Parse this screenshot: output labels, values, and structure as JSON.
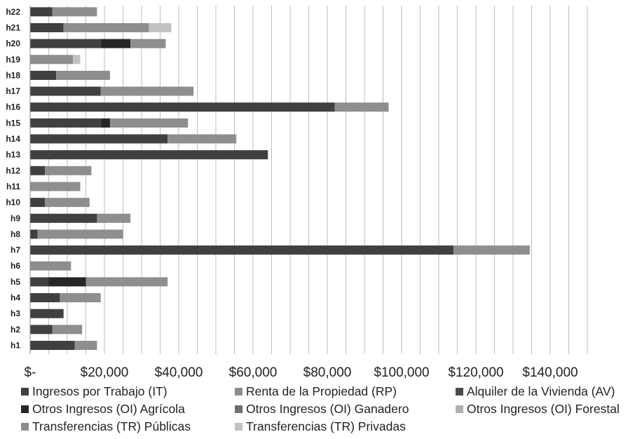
{
  "chart_data": {
    "type": "bar",
    "orientation": "horizontal",
    "stacked": true,
    "categories": [
      "h22",
      "h21",
      "h20",
      "h19",
      "h18",
      "h17",
      "h16",
      "h15",
      "h14",
      "h13",
      "h12",
      "h11",
      "h10",
      "h9",
      "h8",
      "h7",
      "h6",
      "h5",
      "h4",
      "h3",
      "h2",
      "h1"
    ],
    "series": [
      {
        "name": "Ingresos por Trabajo (IT)",
        "color": "#404040",
        "values": [
          6000,
          9000,
          19000,
          0,
          7000,
          19000,
          82000,
          19000,
          37000,
          64000,
          4000,
          0,
          4000,
          18000,
          2000,
          114000,
          0,
          5000,
          8000,
          9000,
          6000,
          12000
        ]
      },
      {
        "name": "Renta de la Propiedad (RP)",
        "color": "#8c8c8c",
        "values": [
          0,
          0,
          0,
          0,
          0,
          0,
          0,
          0,
          0,
          0,
          0,
          0,
          0,
          0,
          0,
          0,
          0,
          0,
          0,
          0,
          0,
          0
        ]
      },
      {
        "name": "Alquiler de la Vivienda (AV)",
        "color": "#4a4a4a",
        "values": [
          0,
          0,
          0,
          0,
          0,
          0,
          0,
          0,
          0,
          0,
          0,
          0,
          0,
          0,
          0,
          0,
          0,
          0,
          0,
          0,
          0,
          0
        ]
      },
      {
        "name": "Otros Ingresos (OI) Agrícola",
        "color": "#262626",
        "values": [
          0,
          0,
          8000,
          0,
          0,
          0,
          0,
          2500,
          0,
          0,
          0,
          0,
          0,
          0,
          0,
          0,
          0,
          10000,
          0,
          0,
          0,
          0
        ]
      },
      {
        "name": "Otros Ingresos (OI) Ganadero",
        "color": "#6e6e6e",
        "values": [
          0,
          0,
          0,
          0,
          0,
          0,
          0,
          0,
          0,
          0,
          0,
          0,
          0,
          0,
          0,
          0,
          0,
          0,
          0,
          0,
          0,
          0
        ]
      },
      {
        "name": "Otros Ingresos (OI) Forestal",
        "color": "#b0b0b0",
        "values": [
          0,
          0,
          0,
          0,
          0,
          0,
          0,
          0,
          0,
          0,
          0,
          0,
          0,
          0,
          0,
          0,
          0,
          0,
          0,
          0,
          0,
          0
        ]
      },
      {
        "name": "Transferencias (TR) Públicas",
        "color": "#8e8e8e",
        "values": [
          12000,
          23000,
          9500,
          11500,
          14500,
          25000,
          14500,
          21000,
          18500,
          0,
          12500,
          13500,
          12000,
          9000,
          23000,
          20500,
          11000,
          22000,
          11000,
          0,
          8000,
          6000
        ]
      },
      {
        "name": "Transferencias (TR) Privadas",
        "color": "#c2c2c2",
        "values": [
          0,
          6000,
          0,
          2000,
          0,
          0,
          0,
          0,
          0,
          0,
          0,
          0,
          0,
          0,
          0,
          0,
          0,
          0,
          0,
          0,
          0,
          0
        ]
      }
    ],
    "xlim": [
      0,
      150000
    ],
    "xticks": [
      0,
      20000,
      40000,
      60000,
      80000,
      100000,
      120000,
      140000
    ],
    "xtick_labels": [
      "$-",
      "$20,000",
      "$40,000",
      "$60,000",
      "$80,000",
      "$100,000",
      "$120,000",
      "$140,000"
    ],
    "vertical_grid_step": 5000,
    "grid": true,
    "legend_position": "bottom",
    "title": "",
    "xlabel": "",
    "ylabel": ""
  }
}
